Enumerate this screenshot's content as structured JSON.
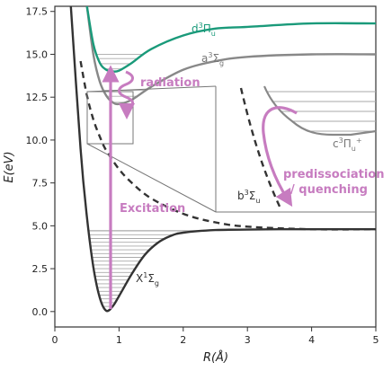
{
  "chart_data": {
    "type": "line",
    "xlabel": "R(Å)",
    "ylabel": "E(eV)",
    "xlim": [
      0,
      5
    ],
    "ylim": [
      -0.9,
      17.8
    ],
    "xticks": [
      "0",
      "1",
      "2",
      "3",
      "4",
      "5"
    ],
    "yticks": [
      "0.0",
      "2.5",
      "5.0",
      "7.5",
      "10.0",
      "12.5",
      "15.0",
      "17.5"
    ],
    "grid": false,
    "colors": {
      "ground": "#333333",
      "dpi": "#1a9a7a",
      "triplet": "#888888",
      "annotation": "#c77cc0",
      "levels": "#aaaaaa"
    },
    "series": [
      {
        "name": "X¹Σg",
        "style": "solid",
        "color": "#333333",
        "x": [
          0.25,
          0.4,
          0.5,
          0.6,
          0.7,
          0.8,
          0.9,
          1.0,
          1.2,
          1.4,
          1.6,
          1.8,
          2.0,
          2.5,
          3.0,
          3.5,
          4.0,
          5.0
        ],
        "y": [
          17.8,
          9.5,
          5.5,
          2.6,
          0.8,
          0.05,
          0.3,
          0.9,
          2.2,
          3.3,
          4.0,
          4.4,
          4.6,
          4.75,
          4.78,
          4.8,
          4.8,
          4.8
        ]
      },
      {
        "name": "d³Πu",
        "style": "solid",
        "color": "#1a9a7a",
        "x": [
          0.5,
          0.6,
          0.7,
          0.8,
          0.9,
          1.0,
          1.2,
          1.5,
          2.0,
          2.5,
          3.0,
          4.0,
          5.0
        ],
        "y": [
          17.8,
          15.6,
          14.5,
          14.1,
          14.0,
          14.05,
          14.5,
          15.3,
          16.1,
          16.5,
          16.6,
          16.8,
          16.8
        ]
      },
      {
        "name": "a³Σg",
        "style": "solid",
        "color": "#888888",
        "x": [
          0.5,
          0.6,
          0.7,
          0.8,
          0.9,
          1.0,
          1.2,
          1.5,
          2.0,
          2.5,
          3.0,
          4.0,
          5.0
        ],
        "y": [
          17.8,
          15.0,
          13.4,
          12.6,
          12.2,
          12.1,
          12.35,
          13.1,
          14.1,
          14.6,
          14.85,
          15.0,
          15.0
        ]
      },
      {
        "name": "b³Σu",
        "style": "dashed",
        "color": "#333333",
        "x": [
          0.4,
          0.5,
          0.6,
          0.7,
          0.8,
          1.0,
          1.2,
          1.5,
          2.0,
          2.5,
          3.0,
          4.0,
          5.0
        ],
        "y": [
          14.6,
          12.6,
          11.2,
          10.2,
          9.4,
          8.3,
          7.5,
          6.6,
          5.7,
          5.2,
          4.95,
          4.8,
          4.8
        ]
      }
    ],
    "inset_series": [
      {
        "name": "c³Πu⁺",
        "color": "#888888",
        "style": "solid"
      },
      {
        "name": "b³Σu",
        "color": "#333333",
        "style": "dashed"
      }
    ],
    "labels": {
      "ground_main": "X",
      "ground_sup": "1",
      "ground_sigma": "Σ",
      "ground_sub": "g",
      "d_main": "d",
      "d_sup": "3",
      "d_pi": "Π",
      "d_sub": "u",
      "a_main": "a",
      "a_sup": "3",
      "a_sigma": "Σ",
      "a_sub": "g",
      "b_main": "b",
      "b_sup": "3",
      "b_sigma": "Σ",
      "b_sub": "u",
      "c_main": "c",
      "c_sup": "3",
      "c_pi": "Π",
      "c_sub": "u",
      "c_plus": "+"
    },
    "annotations": {
      "excitation": "Excitation",
      "radiation": "radiation",
      "predissociation_line1": "predissociation",
      "predissociation_line2": "/ quenching"
    }
  }
}
